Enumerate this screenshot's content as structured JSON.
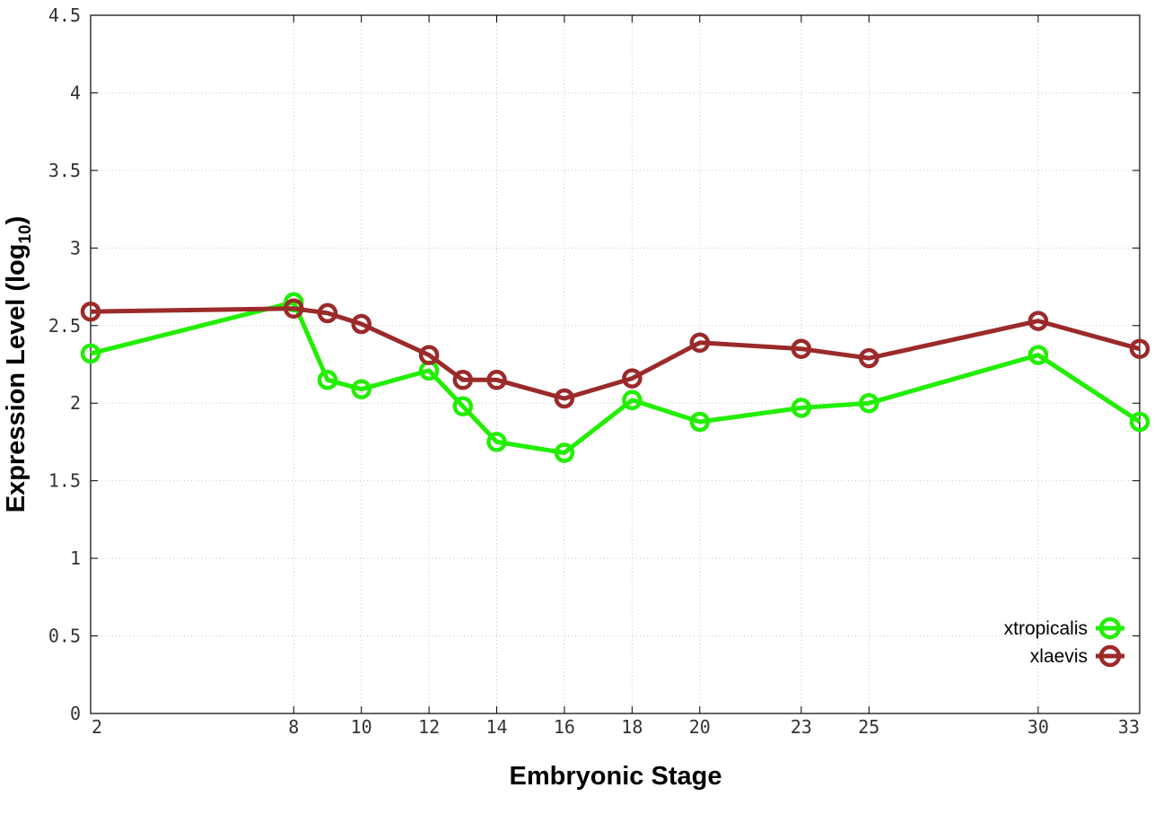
{
  "chart_data": {
    "type": "line",
    "title": "",
    "xlabel": "Embryonic Stage",
    "ylabel": "Expression Level (log",
    "ylabel_subscript": "10",
    "ylabel_suffix": ")",
    "ylim": [
      0,
      4.5
    ],
    "yticks": [
      "0",
      "0.5",
      "1",
      "1.5",
      "2",
      "2.5",
      "3",
      "3.5",
      "4",
      "4.5"
    ],
    "categories": [
      "2",
      "8",
      "9",
      "10",
      "12",
      "13",
      "14",
      "16",
      "18",
      "20",
      "23",
      "25",
      "30",
      "33"
    ],
    "xticks": [
      "2",
      "8",
      "10",
      "12",
      "14",
      "16",
      "18",
      "20",
      "23",
      "25",
      "30",
      "33"
    ],
    "grid": true,
    "legend_position": "bottom-right",
    "series": [
      {
        "name": "xtropicalis",
        "color": "#22ee00",
        "values": [
          2.32,
          2.65,
          2.15,
          2.09,
          2.21,
          1.98,
          1.75,
          1.68,
          2.02,
          1.88,
          1.97,
          2.0,
          2.31,
          1.88
        ]
      },
      {
        "name": "xlaevis",
        "color": "#9b2a2a",
        "values": [
          2.59,
          2.61,
          2.58,
          2.51,
          2.31,
          2.15,
          2.15,
          2.03,
          2.16,
          2.39,
          2.35,
          2.29,
          2.53,
          2.35
        ]
      }
    ]
  }
}
